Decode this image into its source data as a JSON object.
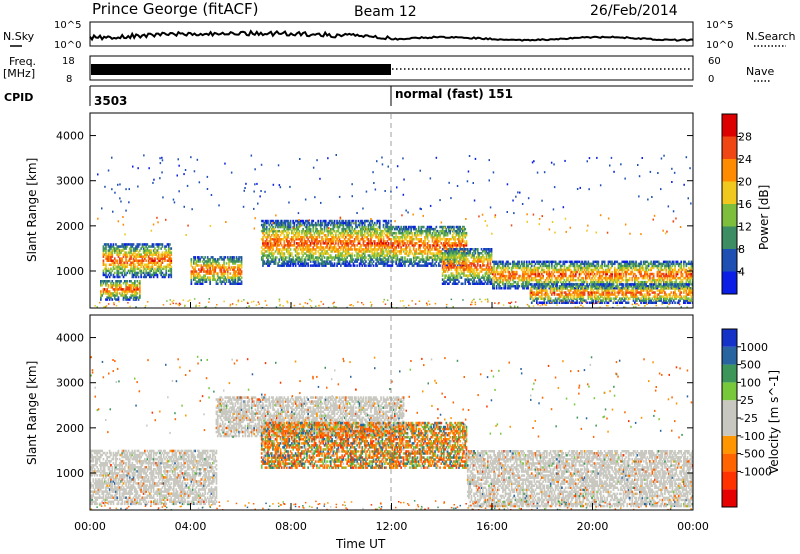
{
  "header": {
    "station": "Prince George (fitACF)",
    "beam": "Beam 12",
    "date": "26/Feb/2014"
  },
  "top_panels": {
    "nsky_label": "N.Sky",
    "nsearch_label": "N.Search",
    "nsky_ticks": [
      "10^5",
      "10^0"
    ],
    "nsearch_ticks": [
      "10^5",
      "10^0"
    ],
    "freq_label": "Freq.",
    "freq_unit": "[MHz]",
    "freq_ticks": [
      "18",
      "8"
    ],
    "nave_label": "Nave",
    "nave_ticks": [
      "60",
      "0"
    ],
    "cpid_label": "CPID",
    "cpid_segments": [
      "3503",
      "normal (fast) 151"
    ]
  },
  "chart_data": [
    {
      "type": "heatmap",
      "quantity": "Power",
      "ylabel": "Slant Range [km]",
      "ylim": [
        180,
        4500
      ],
      "yticks": [
        1000,
        2000,
        3000,
        4000
      ],
      "colorbar_label": "Power [dB]",
      "colorbar_ticks": [
        "4",
        "8",
        "12",
        "16",
        "20",
        "24",
        "28"
      ],
      "colorbar_range": [
        0,
        32
      ],
      "colorbar_colors": [
        "#0a1ee6",
        "#1e50b4",
        "#3c8c64",
        "#7dbe3c",
        "#f0c81e",
        "#ff8c00",
        "#f04614",
        "#dc0000"
      ],
      "regions": [
        {
          "t": [
            0.5,
            3.2
          ],
          "r": [
            850,
            1600
          ]
        },
        {
          "t": [
            0.4,
            2.0
          ],
          "r": [
            350,
            800
          ]
        },
        {
          "t": [
            4.0,
            6.0
          ],
          "r": [
            700,
            1300
          ]
        },
        {
          "t": [
            6.8,
            12.0
          ],
          "r": [
            1100,
            2100
          ]
        },
        {
          "t": [
            12.0,
            15.0
          ],
          "r": [
            1100,
            2000
          ]
        },
        {
          "t": [
            14.0,
            16.0
          ],
          "r": [
            700,
            1500
          ]
        },
        {
          "t": [
            16.0,
            24.0
          ],
          "r": [
            600,
            1200
          ]
        },
        {
          "t": [
            17.5,
            24.0
          ],
          "r": [
            280,
            700
          ]
        }
      ]
    },
    {
      "type": "heatmap",
      "quantity": "Velocity",
      "ylabel": "Slant Range [km]",
      "xlabel": "Time UT",
      "ylim": [
        180,
        4500
      ],
      "yticks": [
        1000,
        2000,
        3000,
        4000
      ],
      "xlim": [
        0,
        24
      ],
      "xticks": [
        "00:00",
        "04:00",
        "08:00",
        "12:00",
        "16:00",
        "20:00",
        "00:00"
      ],
      "colorbar_label": "Velocity [m s^-1]",
      "colorbar_ticks": [
        "1000",
        "500",
        "100",
        "25",
        "-25",
        "-100",
        "-500",
        "-1000"
      ],
      "colorbar_colors": [
        "#1432c8",
        "#2864a0",
        "#3c965a",
        "#78c83c",
        "#c8c8c0",
        "#c8c8c0",
        "#ff9600",
        "#ff6400",
        "#ff3200",
        "#e60000"
      ],
      "regions": [
        {
          "t": [
            0.0,
            5.0
          ],
          "r": [
            300,
            1500
          ],
          "kind": "ground"
        },
        {
          "t": [
            5.0,
            12.5
          ],
          "r": [
            1800,
            2700
          ],
          "kind": "ground"
        },
        {
          "t": [
            6.8,
            15.0
          ],
          "r": [
            1100,
            2100
          ],
          "kind": "mixed"
        },
        {
          "t": [
            15.0,
            24.0
          ],
          "r": [
            250,
            1500
          ],
          "kind": "ground"
        }
      ]
    }
  ]
}
